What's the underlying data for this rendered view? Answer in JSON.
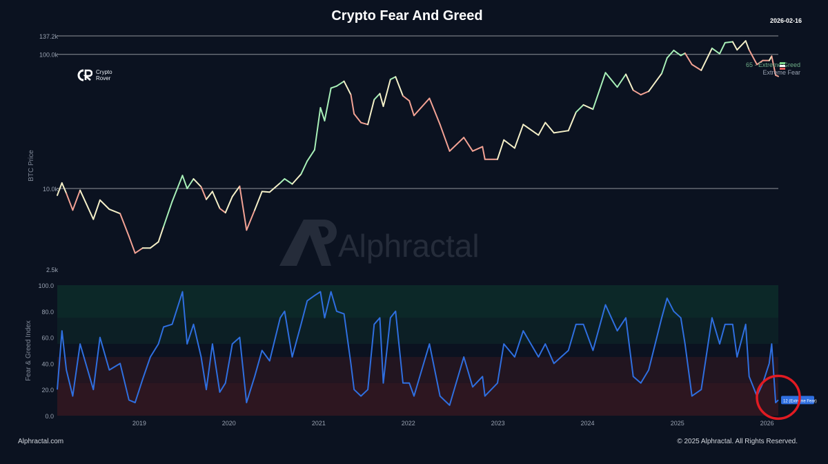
{
  "header": {
    "title": "Crypto Fear And Greed",
    "date": "2026-02-16",
    "brand_line1": "Crypto",
    "brand_line2": "Rover"
  },
  "watermark": "Alphractal",
  "footer": {
    "left": "Alphractal.com",
    "right": "© 2025 Alphractal. All Rights Reserved."
  },
  "colors": {
    "background": "#0b1220",
    "index_line": "#2f6fe0",
    "greed_line": "#a8f0b8",
    "neutral_line": "#f5f0c8",
    "fear_line": "#f3a294",
    "greed_zone": "#0f3a30",
    "fear_zone": "#3a1820",
    "highlight_circle": "#e11b22"
  },
  "chart_data": [
    {
      "type": "line",
      "ylabel": "BTC Price",
      "yscale": "log",
      "ylim": [
        2500,
        137200
      ],
      "ytick_labels": [
        "2.5k",
        "10.0k",
        "100.0k",
        "137.2k"
      ],
      "ytick_values": [
        2500,
        10000,
        100000,
        137200
      ],
      "annotations": [
        "65 - Extreme Greed",
        "Extreme Fear"
      ],
      "series": [
        {
          "values_by_date": [
            [
              "2018-02-01",
              8900
            ],
            [
              "2018-02-20",
              11000
            ],
            [
              "2018-03-10",
              9200
            ],
            [
              "2018-04-05",
              6900
            ],
            [
              "2018-05-05",
              9700
            ],
            [
              "2018-06-28",
              5900
            ],
            [
              "2018-07-25",
              8200
            ],
            [
              "2018-09-01",
              7000
            ],
            [
              "2018-10-15",
              6500
            ],
            [
              "2018-11-20",
              4400
            ],
            [
              "2018-12-15",
              3300
            ],
            [
              "2019-01-15",
              3600
            ],
            [
              "2019-02-15",
              3600
            ],
            [
              "2019-03-20",
              4000
            ],
            [
              "2019-04-10",
              5200
            ],
            [
              "2019-05-15",
              8000
            ],
            [
              "2019-06-26",
              12500
            ],
            [
              "2019-07-15",
              10000
            ],
            [
              "2019-08-10",
              11800
            ],
            [
              "2019-09-10",
              10300
            ],
            [
              "2019-10-01",
              8300
            ],
            [
              "2019-10-26",
              9500
            ],
            [
              "2019-11-25",
              7100
            ],
            [
              "2019-12-18",
              6600
            ],
            [
              "2020-01-15",
              8700
            ],
            [
              "2020-02-14",
              10400
            ],
            [
              "2020-03-13",
              4900
            ],
            [
              "2020-04-15",
              6900
            ],
            [
              "2020-05-15",
              9500
            ],
            [
              "2020-06-15",
              9400
            ],
            [
              "2020-07-28",
              11000
            ],
            [
              "2020-08-15",
              11800
            ],
            [
              "2020-09-15",
              10800
            ],
            [
              "2020-10-21",
              12800
            ],
            [
              "2020-11-15",
              16000
            ],
            [
              "2020-12-15",
              19400
            ],
            [
              "2021-01-08",
              40000
            ],
            [
              "2021-01-25",
              32000
            ],
            [
              "2021-02-20",
              56000
            ],
            [
              "2021-03-15",
              58000
            ],
            [
              "2021-04-14",
              63000
            ],
            [
              "2021-05-12",
              50000
            ],
            [
              "2021-05-25",
              36000
            ],
            [
              "2021-06-22",
              31000
            ],
            [
              "2021-07-20",
              30000
            ],
            [
              "2021-08-15",
              46000
            ],
            [
              "2021-09-07",
              51000
            ],
            [
              "2021-09-21",
              41000
            ],
            [
              "2021-10-20",
              65000
            ],
            [
              "2021-11-10",
              68000
            ],
            [
              "2021-12-10",
              49000
            ],
            [
              "2022-01-05",
              45000
            ],
            [
              "2022-01-24",
              35000
            ],
            [
              "2022-03-28",
              47000
            ],
            [
              "2022-05-10",
              30000
            ],
            [
              "2022-06-18",
              19000
            ],
            [
              "2022-08-15",
              24000
            ],
            [
              "2022-09-20",
              19000
            ],
            [
              "2022-10-30",
              20500
            ],
            [
              "2022-11-09",
              16500
            ],
            [
              "2022-12-30",
              16500
            ],
            [
              "2023-01-25",
              23000
            ],
            [
              "2023-03-10",
              20000
            ],
            [
              "2023-04-14",
              30000
            ],
            [
              "2023-06-15",
              25000
            ],
            [
              "2023-07-13",
              31000
            ],
            [
              "2023-08-17",
              26000
            ],
            [
              "2023-10-15",
              27000
            ],
            [
              "2023-11-15",
              37000
            ],
            [
              "2023-12-15",
              42000
            ],
            [
              "2024-01-23",
              39000
            ],
            [
              "2024-03-14",
              73000
            ],
            [
              "2024-05-01",
              57000
            ],
            [
              "2024-06-05",
              71000
            ],
            [
              "2024-07-05",
              54000
            ],
            [
              "2024-08-05",
              50000
            ],
            [
              "2024-09-06",
              53000
            ],
            [
              "2024-10-29",
              72000
            ],
            [
              "2024-11-20",
              94000
            ],
            [
              "2024-12-17",
              107000
            ],
            [
              "2025-01-15",
              98000
            ],
            [
              "2025-02-01",
              102000
            ],
            [
              "2025-03-01",
              84000
            ],
            [
              "2025-04-08",
              76000
            ],
            [
              "2025-05-22",
              111000
            ],
            [
              "2025-06-22",
              101000
            ],
            [
              "2025-07-14",
              122000
            ],
            [
              "2025-08-14",
              124000
            ],
            [
              "2025-09-01",
              108000
            ],
            [
              "2025-10-06",
              126000
            ],
            [
              "2025-10-20",
              108000
            ],
            [
              "2025-11-21",
              84000
            ],
            [
              "2025-12-15",
              90000
            ],
            [
              "2026-01-10",
              90000
            ],
            [
              "2026-01-20",
              97000
            ],
            [
              "2026-02-05",
              70000
            ],
            [
              "2026-02-16",
              68500
            ]
          ]
        }
      ]
    },
    {
      "type": "line",
      "ylabel": "Fear & Greed Index",
      "ylim": [
        0,
        100
      ],
      "ytick_labels": [
        "0.0",
        "20.0",
        "40.0",
        "60.0",
        "80.0",
        "100.0"
      ],
      "xtick_labels": [
        "2019",
        "2020",
        "2021",
        "2022",
        "2023",
        "2024",
        "2025",
        "2026"
      ],
      "current_label": "12 (Extreme Fear)",
      "series": [
        {
          "values_by_date": [
            [
              "2018-02-01",
              20
            ],
            [
              "2018-02-20",
              65
            ],
            [
              "2018-03-10",
              35
            ],
            [
              "2018-04-05",
              15
            ],
            [
              "2018-05-05",
              55
            ],
            [
              "2018-06-28",
              20
            ],
            [
              "2018-07-25",
              60
            ],
            [
              "2018-09-01",
              35
            ],
            [
              "2018-10-15",
              40
            ],
            [
              "2018-11-20",
              12
            ],
            [
              "2018-12-15",
              10
            ],
            [
              "2019-01-15",
              28
            ],
            [
              "2019-02-15",
              45
            ],
            [
              "2019-03-20",
              55
            ],
            [
              "2019-04-10",
              68
            ],
            [
              "2019-05-15",
              70
            ],
            [
              "2019-06-26",
              95
            ],
            [
              "2019-07-15",
              55
            ],
            [
              "2019-08-10",
              70
            ],
            [
              "2019-09-10",
              45
            ],
            [
              "2019-10-01",
              20
            ],
            [
              "2019-10-26",
              55
            ],
            [
              "2019-11-25",
              18
            ],
            [
              "2019-12-18",
              25
            ],
            [
              "2020-01-15",
              55
            ],
            [
              "2020-02-14",
              60
            ],
            [
              "2020-03-13",
              10
            ],
            [
              "2020-04-15",
              30
            ],
            [
              "2020-05-15",
              50
            ],
            [
              "2020-06-15",
              42
            ],
            [
              "2020-07-28",
              75
            ],
            [
              "2020-08-15",
              80
            ],
            [
              "2020-09-15",
              45
            ],
            [
              "2020-10-21",
              70
            ],
            [
              "2020-11-15",
              88
            ],
            [
              "2020-12-15",
              92
            ],
            [
              "2021-01-08",
              95
            ],
            [
              "2021-01-25",
              75
            ],
            [
              "2021-02-20",
              95
            ],
            [
              "2021-03-15",
              80
            ],
            [
              "2021-04-14",
              78
            ],
            [
              "2021-05-12",
              40
            ],
            [
              "2021-05-25",
              20
            ],
            [
              "2021-06-22",
              15
            ],
            [
              "2021-07-20",
              20
            ],
            [
              "2021-08-15",
              70
            ],
            [
              "2021-09-07",
              75
            ],
            [
              "2021-09-21",
              25
            ],
            [
              "2021-10-20",
              75
            ],
            [
              "2021-11-10",
              80
            ],
            [
              "2021-12-10",
              25
            ],
            [
              "2022-01-05",
              25
            ],
            [
              "2022-01-24",
              15
            ],
            [
              "2022-03-28",
              55
            ],
            [
              "2022-05-10",
              15
            ],
            [
              "2022-06-18",
              8
            ],
            [
              "2022-08-15",
              45
            ],
            [
              "2022-09-20",
              22
            ],
            [
              "2022-10-30",
              30
            ],
            [
              "2022-11-09",
              15
            ],
            [
              "2022-12-30",
              25
            ],
            [
              "2023-01-25",
              55
            ],
            [
              "2023-03-10",
              45
            ],
            [
              "2023-04-14",
              65
            ],
            [
              "2023-06-15",
              45
            ],
            [
              "2023-07-13",
              55
            ],
            [
              "2023-08-17",
              40
            ],
            [
              "2023-10-15",
              50
            ],
            [
              "2023-11-15",
              70
            ],
            [
              "2023-12-15",
              70
            ],
            [
              "2024-01-23",
              50
            ],
            [
              "2024-03-14",
              85
            ],
            [
              "2024-05-01",
              65
            ],
            [
              "2024-06-05",
              75
            ],
            [
              "2024-07-05",
              30
            ],
            [
              "2024-08-05",
              25
            ],
            [
              "2024-09-06",
              35
            ],
            [
              "2024-10-29",
              75
            ],
            [
              "2024-11-20",
              90
            ],
            [
              "2024-12-17",
              80
            ],
            [
              "2025-01-15",
              75
            ],
            [
              "2025-02-01",
              55
            ],
            [
              "2025-03-01",
              15
            ],
            [
              "2025-04-08",
              20
            ],
            [
              "2025-05-22",
              75
            ],
            [
              "2025-06-22",
              55
            ],
            [
              "2025-07-14",
              70
            ],
            [
              "2025-08-14",
              70
            ],
            [
              "2025-09-01",
              45
            ],
            [
              "2025-10-06",
              70
            ],
            [
              "2025-10-20",
              30
            ],
            [
              "2025-11-21",
              15
            ],
            [
              "2025-12-15",
              25
            ],
            [
              "2026-01-10",
              40
            ],
            [
              "2026-01-20",
              55
            ],
            [
              "2026-02-05",
              10
            ],
            [
              "2026-02-16",
              12
            ]
          ]
        }
      ]
    }
  ]
}
